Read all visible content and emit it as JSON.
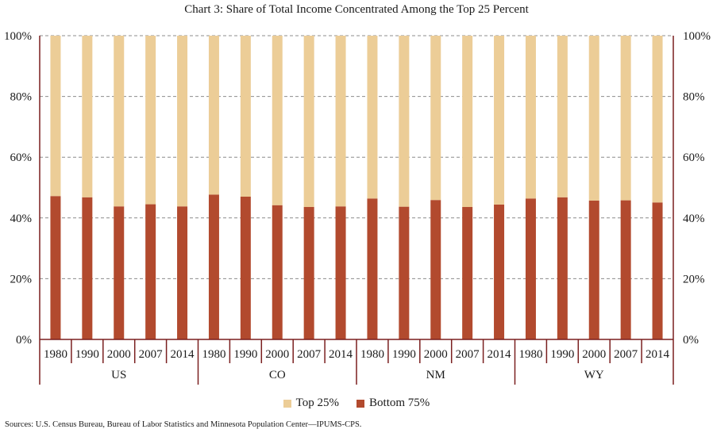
{
  "chart_data": {
    "type": "bar",
    "stacked": true,
    "title": "Chart 3: Share of Total Income Concentrated Among the Top 25 Percent",
    "source": "Sources: U.S. Census Bureau, Bureau of Labor Statistics and Minnesota Population Center—IPUMS-CPS.",
    "groups": [
      "US",
      "CO",
      "NM",
      "WY"
    ],
    "years": [
      "1980",
      "1990",
      "2000",
      "2007",
      "2014"
    ],
    "series": [
      {
        "name": "Bottom 75%",
        "color": "#b24a2e",
        "values": [
          47.2,
          46.8,
          43.8,
          44.5,
          43.8,
          47.7,
          47.0,
          44.2,
          43.6,
          43.8,
          46.4,
          43.7,
          45.9,
          43.6,
          44.4,
          46.4,
          46.8,
          45.7,
          45.8,
          45.1
        ]
      },
      {
        "name": "Top 25%",
        "color": "#eccd97",
        "values": [
          52.8,
          53.2,
          56.2,
          55.5,
          56.2,
          52.3,
          53.0,
          55.8,
          56.4,
          56.2,
          53.6,
          56.3,
          54.1,
          56.4,
          55.6,
          53.6,
          53.2,
          54.3,
          54.2,
          54.9
        ]
      }
    ],
    "legend_order": [
      "Top 25%",
      "Bottom 75%"
    ],
    "ylim": [
      0,
      100
    ],
    "yticks": [
      0,
      20,
      40,
      60,
      80,
      100
    ],
    "ytick_labels": [
      "0%",
      "20%",
      "40%",
      "60%",
      "80%",
      "100%"
    ],
    "grid": true,
    "legend_position": "bottom"
  }
}
